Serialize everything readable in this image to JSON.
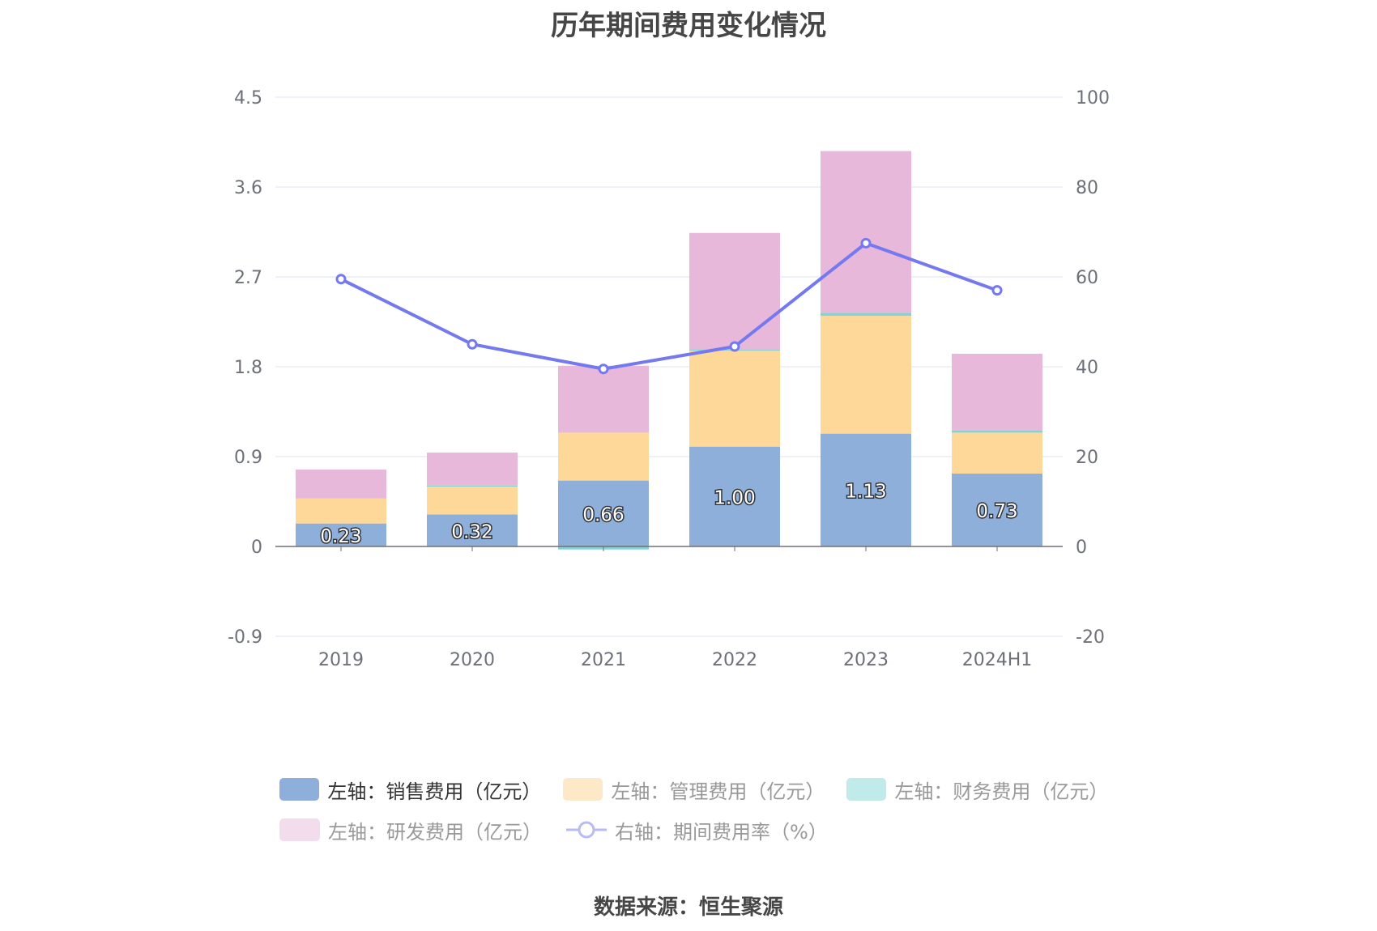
{
  "title": "历年期间费用变化情况",
  "source": "数据来源：恒生聚源",
  "legend": {
    "sales": "左轴：销售费用（亿元）",
    "admin": "左轴：管理费用（亿元）",
    "finance": "左轴：财务费用（亿元）",
    "rnd": "左轴：研发费用（亿元）",
    "rate": "右轴：期间费用率（%）"
  },
  "colors": {
    "sales": "#8fafdb",
    "admin": "#fed898",
    "finance": "#84d3d3",
    "rnd": "#e8b8da",
    "rate": "#7479ef",
    "grid": "#dfe3f5",
    "axis": "#6e7079"
  },
  "chart_data": {
    "type": "bar",
    "stacked": true,
    "categories": [
      "2019",
      "2020",
      "2021",
      "2022",
      "2023",
      "2024H1"
    ],
    "series": [
      {
        "name": "左轴：销售费用（亿元）",
        "axis": "left",
        "values": [
          0.23,
          0.32,
          0.66,
          1.0,
          1.13,
          0.73
        ],
        "labels": [
          "0.23",
          "0.32",
          "0.66",
          "1.00",
          "1.13",
          "0.73"
        ]
      },
      {
        "name": "左轴：管理费用（亿元）",
        "axis": "left",
        "values": [
          0.25,
          0.28,
          0.48,
          0.96,
          1.18,
          0.41
        ]
      },
      {
        "name": "左轴：财务费用（亿元）",
        "axis": "left",
        "values": [
          0.0,
          0.01,
          -0.03,
          0.01,
          0.03,
          0.02
        ]
      },
      {
        "name": "左轴：研发费用（亿元）",
        "axis": "left",
        "values": [
          0.29,
          0.33,
          0.67,
          1.17,
          1.62,
          0.77
        ]
      },
      {
        "name": "右轴：期间费用率（%）",
        "axis": "right",
        "type": "line",
        "values": [
          59.5,
          45,
          39.5,
          44.5,
          67.5,
          57
        ]
      }
    ],
    "y_left": {
      "min": -0.9,
      "max": 4.5,
      "ticks": [
        "-0.9",
        "0",
        "0.9",
        "1.8",
        "2.7",
        "3.6",
        "4.5"
      ]
    },
    "y_right": {
      "min": -20,
      "max": 100,
      "ticks": [
        "-20",
        "0",
        "20",
        "40",
        "60",
        "80",
        "100"
      ]
    },
    "grid": true,
    "legend_position": "bottom"
  }
}
